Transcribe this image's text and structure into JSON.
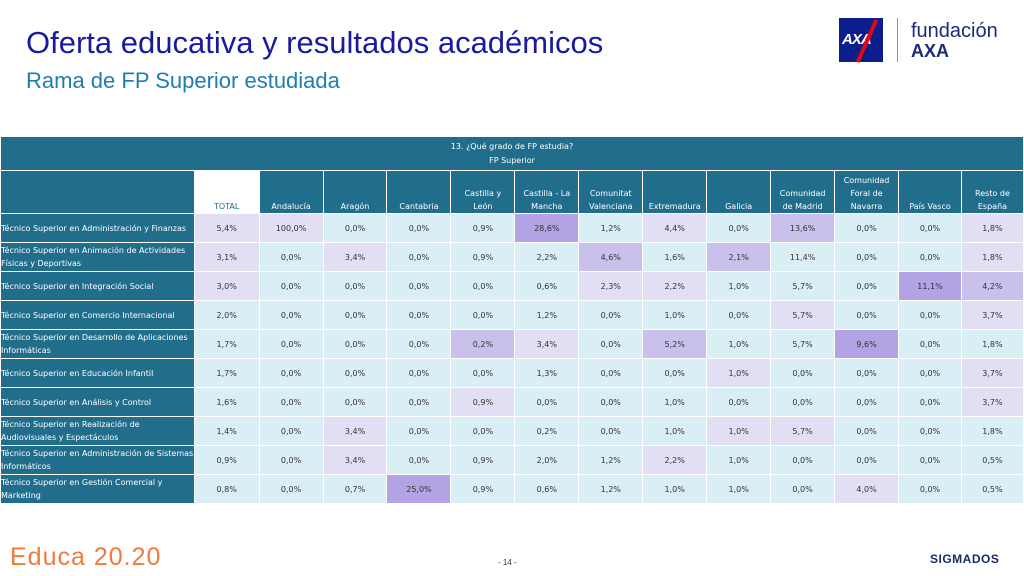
{
  "header": {
    "title": "Oferta educativa y resultados académicos",
    "subtitle": "Rama de FP Superior estudiada",
    "logo_fundacion": "fundación",
    "logo_axa": "AXA",
    "axa_mark": "AXA",
    "brand_color": "#0b1e8c"
  },
  "table": {
    "question": "13. ¿Qué grado de FP estudia?",
    "question_sub": "FP Superior",
    "columns": [
      [
        "TOTAL"
      ],
      [
        "Andalucía"
      ],
      [
        "Aragón"
      ],
      [
        "Cantabria"
      ],
      [
        "Castilla y",
        "León"
      ],
      [
        "Castilla - La",
        "Mancha"
      ],
      [
        "Comunitat",
        "Valenciana"
      ],
      [
        "Extremadura"
      ],
      [
        "Galicia"
      ],
      [
        "Comunidad",
        "de Madrid"
      ],
      [
        "Comunidad",
        "Foral de",
        "Navarra"
      ],
      [
        "País Vasco"
      ],
      [
        "Resto de",
        "España"
      ]
    ],
    "rows": [
      {
        "label": "Técnico Superior en Administración y Finanzas",
        "values": [
          "5,4%",
          "100,0%",
          "0,0%",
          "0,0%",
          "0,9%",
          "28,6%",
          "1,2%",
          "4,4%",
          "0,0%",
          "13,6%",
          "0,0%",
          "0,0%",
          "1,8%"
        ],
        "shades": [
          1,
          1,
          0,
          0,
          0,
          3,
          0,
          1,
          0,
          2,
          0,
          0,
          1
        ]
      },
      {
        "label": "Técnico Superior en Animación de Actividades Físicas y Deportivas",
        "values": [
          "3,1%",
          "0,0%",
          "3,4%",
          "0,0%",
          "0,9%",
          "2,2%",
          "4,6%",
          "1,6%",
          "2,1%",
          "11,4%",
          "0,0%",
          "0,0%",
          "1,8%"
        ],
        "shades": [
          1,
          0,
          1,
          0,
          0,
          0,
          2,
          0,
          2,
          0,
          0,
          0,
          1
        ]
      },
      {
        "label": "Técnico Superior en Integración Social",
        "values": [
          "3,0%",
          "0,0%",
          "0,0%",
          "0,0%",
          "0,0%",
          "0,6%",
          "2,3%",
          "2,2%",
          "1,0%",
          "5,7%",
          "0,0%",
          "11,1%",
          "4,2%"
        ],
        "shades": [
          1,
          0,
          0,
          0,
          0,
          0,
          1,
          1,
          0,
          0,
          0,
          3,
          2
        ]
      },
      {
        "label": "Técnico Superior en Comercio Internacional",
        "values": [
          "2,0%",
          "0,0%",
          "0,0%",
          "0,0%",
          "0,0%",
          "1,2%",
          "0,0%",
          "1,0%",
          "0,0%",
          "5,7%",
          "0,0%",
          "0,0%",
          "3,7%"
        ],
        "shades": [
          0,
          0,
          0,
          0,
          0,
          0,
          0,
          0,
          0,
          1,
          0,
          0,
          1
        ]
      },
      {
        "label": "Técnico Superior en Desarrollo de Aplicaciones Informáticas",
        "values": [
          "1,7%",
          "0,0%",
          "0,0%",
          "0,0%",
          "0,2%",
          "3,4%",
          "0,0%",
          "5,2%",
          "1,0%",
          "5,7%",
          "9,6%",
          "0,0%",
          "1,8%"
        ],
        "shades": [
          0,
          0,
          0,
          0,
          2,
          1,
          0,
          2,
          0,
          0,
          3,
          0,
          0
        ]
      },
      {
        "label": "Técnico Superior en Educación Infantil",
        "values": [
          "1,7%",
          "0,0%",
          "0,0%",
          "0,0%",
          "0,0%",
          "1,3%",
          "0,0%",
          "0,0%",
          "1,0%",
          "0,0%",
          "0,0%",
          "0,0%",
          "3,7%"
        ],
        "shades": [
          0,
          0,
          0,
          0,
          0,
          0,
          0,
          0,
          1,
          0,
          0,
          0,
          1
        ]
      },
      {
        "label": "Técnico Superior en Análisis y Control",
        "values": [
          "1,6%",
          "0,0%",
          "0,0%",
          "0,0%",
          "0,9%",
          "0,0%",
          "0,0%",
          "1,0%",
          "0,0%",
          "0,0%",
          "0,0%",
          "0,0%",
          "3,7%"
        ],
        "shades": [
          0,
          0,
          0,
          0,
          1,
          0,
          0,
          0,
          0,
          0,
          0,
          0,
          1
        ]
      },
      {
        "label": "Técnico Superior en Realización de Audiovisuales y Espectáculos",
        "values": [
          "1,4%",
          "0,0%",
          "3,4%",
          "0,0%",
          "0,0%",
          "0,2%",
          "0,0%",
          "1,0%",
          "1,0%",
          "5,7%",
          "0,0%",
          "0,0%",
          "1,8%"
        ],
        "shades": [
          0,
          0,
          1,
          0,
          0,
          0,
          0,
          0,
          1,
          1,
          0,
          0,
          0
        ]
      },
      {
        "label": "Técnico Superior en Administración de Sistemas Informáticos",
        "values": [
          "0,9%",
          "0,0%",
          "3,4%",
          "0,0%",
          "0,9%",
          "2,0%",
          "1,2%",
          "2,2%",
          "1,0%",
          "0,0%",
          "0,0%",
          "0,0%",
          "0,5%"
        ],
        "shades": [
          0,
          0,
          1,
          0,
          0,
          0,
          0,
          1,
          0,
          0,
          0,
          0,
          0
        ]
      },
      {
        "label": "Técnico Superior en Gestión Comercial y Marketing",
        "values": [
          "0,8%",
          "0,0%",
          "0,7%",
          "25,0%",
          "0,9%",
          "0,6%",
          "1,2%",
          "1,0%",
          "1,0%",
          "0,0%",
          "4,0%",
          "0,0%",
          "0,5%"
        ],
        "shades": [
          0,
          0,
          0,
          3,
          0,
          0,
          0,
          0,
          0,
          0,
          1,
          0,
          0
        ]
      }
    ]
  },
  "footer": {
    "educa": "Educa 20.20",
    "page": "- 14 -",
    "sigmados": "SIGMADOS",
    "educa_color": "#f07a3c"
  }
}
